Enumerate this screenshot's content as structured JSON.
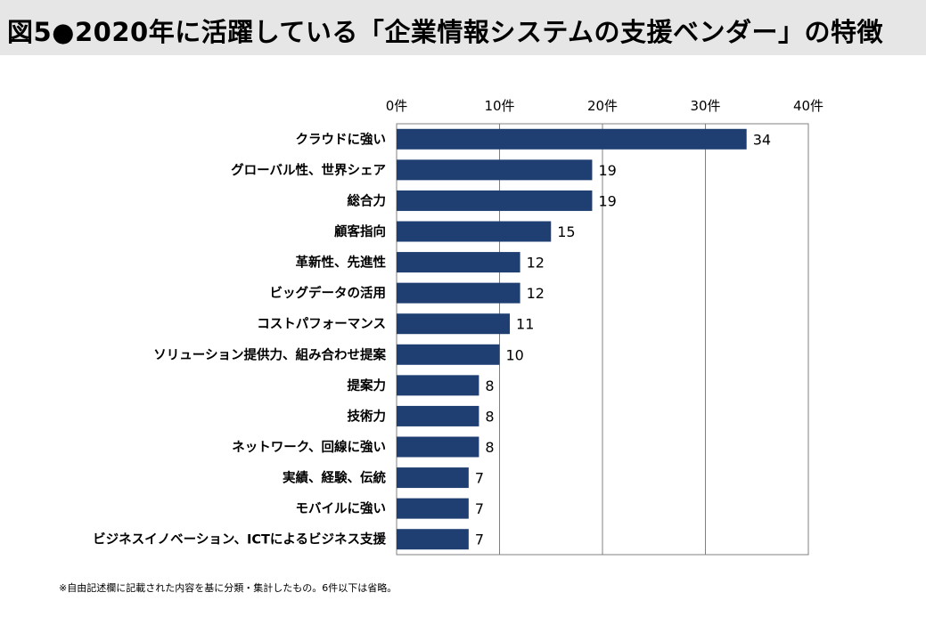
{
  "title": "図5●2020年に活躍している「企業情報システムの支援ベンダー」の特徴",
  "footnote": "※自由記述欄に記載された内容を基に分類・集計したもの。6件以下は省略。",
  "colors": {
    "bar": "#1f3f73",
    "title_bg": "#e6e6e6",
    "grid": "#808080"
  },
  "chart_data": {
    "type": "bar",
    "orientation": "horizontal",
    "categories": [
      "クラウドに強い",
      "グローバル性、世界シェア",
      "総合力",
      "顧客指向",
      "革新性、先進性",
      "ビッグデータの活用",
      "コストパフォーマンス",
      "ソリューション提供力、組み合わせ提案",
      "提案力",
      "技術力",
      "ネットワーク、回線に強い",
      "実績、経験、伝統",
      "モバイルに強い",
      "ビジネスイノベーション、ICTによるビジネス支援"
    ],
    "values": [
      34,
      19,
      19,
      15,
      12,
      12,
      11,
      10,
      8,
      8,
      8,
      7,
      7,
      7
    ],
    "x_ticks": [
      0,
      10,
      20,
      30,
      40
    ],
    "x_tick_labels": [
      "0件",
      "10件",
      "20件",
      "30件",
      "40件"
    ],
    "xlim": [
      0,
      40
    ],
    "axis_position": "top",
    "grid": true,
    "data_labels": true
  }
}
